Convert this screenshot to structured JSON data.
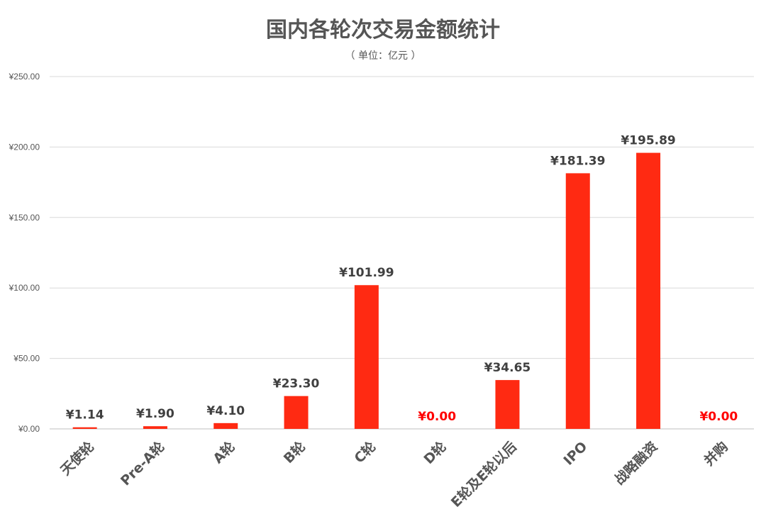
{
  "chart_data": {
    "type": "bar",
    "title": "国内各轮次交易金额统计",
    "subtitle": "（ 单位：亿元 ）",
    "categories": [
      "天使轮",
      "Pre-A轮",
      "A轮",
      "B轮",
      "C轮",
      "D轮",
      "E轮及E轮以后",
      "IPO",
      "战略融资",
      "并购"
    ],
    "values": [
      1.14,
      1.9,
      4.1,
      23.3,
      101.99,
      0.0,
      34.65,
      181.39,
      195.89,
      0.0
    ],
    "data_labels": [
      "¥1.14",
      "¥1.90",
      "¥4.10",
      "¥23.30",
      "¥101.99",
      "¥0.00",
      "¥34.65",
      "¥181.39",
      "¥195.89",
      "¥0.00"
    ],
    "yticks": [
      0,
      50,
      100,
      150,
      200,
      250
    ],
    "ytick_labels": [
      "¥0.00",
      "¥50.00",
      "¥100.00",
      "¥150.00",
      "¥200.00",
      "¥250.00"
    ],
    "ylim": [
      0,
      250
    ],
    "grid": true,
    "colors": {
      "bar": "#ff2a12",
      "label": "#404040",
      "zero_label": "#ff0000"
    }
  }
}
